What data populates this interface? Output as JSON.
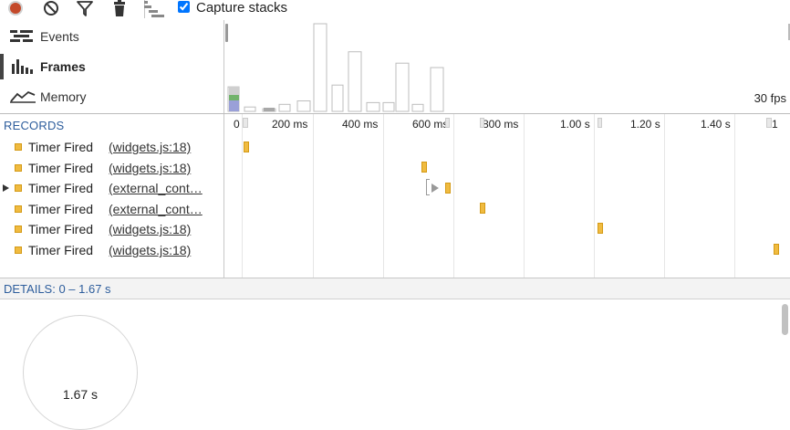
{
  "toolbar": {
    "record_icon": "record-icon",
    "clear_icon": "clear-icon",
    "filter_icon": "filter-icon",
    "garbage_icon": "trash-icon",
    "flame_icon": "flame-chart-icon",
    "capture_stacks_label": "Capture stacks",
    "capture_stacks_checked": true
  },
  "overview": {
    "tabs": [
      {
        "label": "Events",
        "icon": "events-icon",
        "active": false
      },
      {
        "label": "Frames",
        "icon": "frames-icon",
        "active": true
      },
      {
        "label": "Memory",
        "icon": "memory-icon",
        "active": false
      }
    ],
    "fps_label": "30 fps",
    "frame_bar_heights_relative": [
      0.28,
      0.05,
      0.03,
      0.08,
      0.12,
      1.0,
      0.3,
      0.68,
      0.1,
      0.1,
      0.55,
      0.08,
      0.5
    ]
  },
  "timeline": {
    "records_header": "RECORDS",
    "ticks": [
      "0",
      "200 ms",
      "400 ms",
      "600 ms",
      "800 ms",
      "1.00 s",
      "1.20 s",
      "1.40 s",
      "1"
    ],
    "records": [
      {
        "type": "Timer Fired",
        "location": "(widgets.js:18)",
        "expandable": false
      },
      {
        "type": "Timer Fired",
        "location": "(widgets.js:18)",
        "expandable": false
      },
      {
        "type": "Timer Fired",
        "location": "(external_cont…",
        "expandable": true
      },
      {
        "type": "Timer Fired",
        "location": "(external_cont…",
        "expandable": false
      },
      {
        "type": "Timer Fired",
        "location": "(widgets.js:18)",
        "expandable": false
      },
      {
        "type": "Timer Fired",
        "location": "(widgets.js:18)",
        "expandable": false
      }
    ],
    "event_color": "#f0bb40"
  },
  "details": {
    "label": "DETAILS: 0 – 1.67 s",
    "pie_total": "1.67 s"
  }
}
